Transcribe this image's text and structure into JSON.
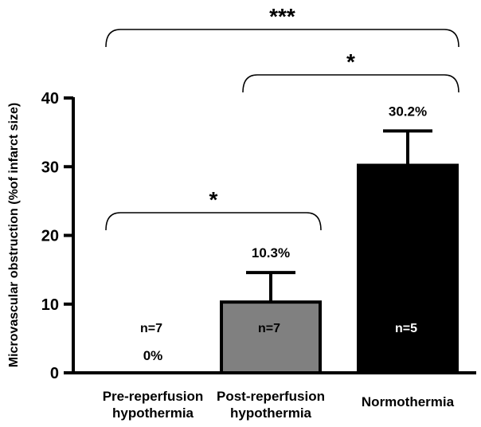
{
  "chart_data": {
    "type": "bar",
    "categories": [
      [
        "Pre-reperfusion",
        "hypothermia"
      ],
      [
        "Post-reperfusion",
        "hypothermia"
      ],
      [
        "Normothermia"
      ]
    ],
    "values": [
      0,
      10.3,
      30.2
    ],
    "errors": [
      0,
      4.3,
      5.0
    ],
    "value_labels": [
      "0%",
      "10.3%",
      "30.2%"
    ],
    "n_labels": [
      "n=7",
      "n=7",
      "n=5"
    ],
    "bar_colors": [
      "#ffffff",
      "#808080",
      "#000000"
    ],
    "n_label_colors": [
      "#000000",
      "#000000",
      "#ffffff"
    ],
    "ylabel": "Microvascular obstruction (%of infarct size)",
    "xlabel": "",
    "ylim": [
      0,
      40
    ],
    "yticks": [
      0,
      10,
      20,
      30,
      40
    ],
    "grid": false,
    "significance": [
      {
        "from": 0,
        "to": 1,
        "label": "*"
      },
      {
        "from": 1,
        "to": 2,
        "label": "*"
      },
      {
        "from": 0,
        "to": 2,
        "label": "***"
      }
    ]
  }
}
